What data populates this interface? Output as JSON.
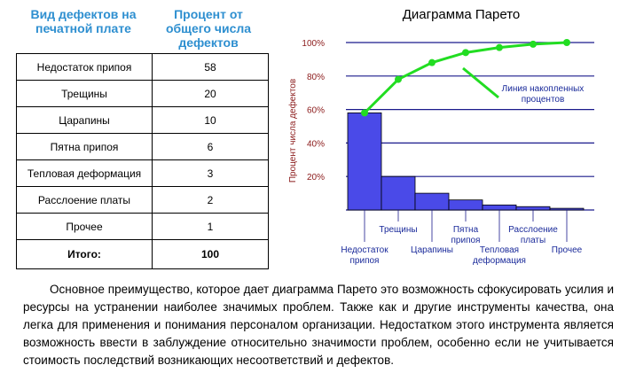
{
  "table": {
    "header_col1": "Вид дефектов на печатной плате",
    "header_col2": "Процент от общего числа дефектов",
    "rows": [
      {
        "name": "Недостаток припоя",
        "value": "58"
      },
      {
        "name": "Трещины",
        "value": "20"
      },
      {
        "name": "Царапины",
        "value": "10"
      },
      {
        "name": "Пятна припоя",
        "value": "6"
      },
      {
        "name": "Тепловая деформация",
        "value": "3"
      },
      {
        "name": "Расслоение платы",
        "value": "2"
      },
      {
        "name": "Прочее",
        "value": "1"
      }
    ],
    "total_label": "Итого:",
    "total_value": "100"
  },
  "chart_data": {
    "type": "bar",
    "title": "Диаграмма Парето",
    "ylabel": "Процент числа дефектов",
    "ylim": [
      0,
      100
    ],
    "yticks": [
      "20%",
      "40%",
      "60%",
      "80%",
      "100%"
    ],
    "categories": [
      "Недостаток припоя",
      "Трещины",
      "Царапины",
      "Пятна припоя",
      "Тепловая деформация",
      "Расслоение платы",
      "Прочее"
    ],
    "category_labels": [
      [
        "Недостаток",
        "припоя"
      ],
      [
        "Трещины"
      ],
      [
        "Царапины"
      ],
      [
        "Пятна",
        "припоя"
      ],
      [
        "Тепловая",
        "деформация"
      ],
      [
        "Расслоение",
        "платы"
      ],
      [
        "Прочее"
      ]
    ],
    "values": [
      58,
      20,
      10,
      6,
      3,
      2,
      1
    ],
    "cumulative": [
      58,
      78,
      88,
      94,
      97,
      99,
      100
    ],
    "annotation": [
      "Линия накопленных",
      "процентов"
    ],
    "colors": {
      "bar": "#4a4ae8",
      "line": "#22dd22",
      "grid": "#1a1a8c",
      "axis_label": "#8b1a1a",
      "tick_label": "#8b1a1a",
      "category_label": "#1a2a9a"
    }
  },
  "paragraph": "Основное преимущество, которое дает диаграмма Парето это возможность сфокусировать усилия и ресурсы на устранении наиболее значимых проблем. Также как и другие инструменты качества, она легка для применения и понимания персоналом организации. Недостатком этого инструмента является возможность ввести в заблуждение относительно значимости проблем, особенно если не учитывается стоимость последствий возникающих несоответствий и дефектов."
}
